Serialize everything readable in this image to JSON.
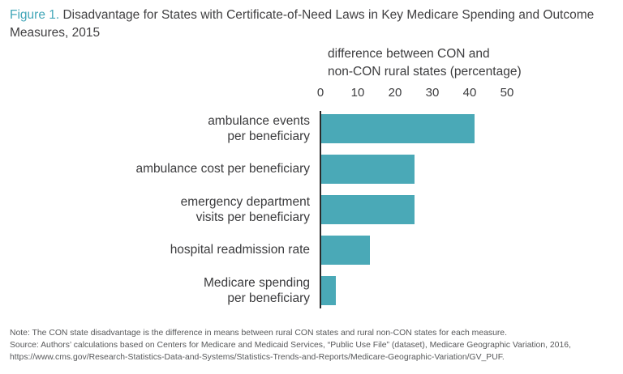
{
  "title": {
    "prefix": "Figure 1.",
    "text": "Disadvantage for States with Certificate-of-Need Laws in Key Medicare Spending and Outcome Measures, 2015"
  },
  "chart_data": {
    "type": "bar",
    "orientation": "horizontal",
    "axis_title_lines": [
      "difference between CON and",
      "non-CON rural states (percentage)"
    ],
    "categories": [
      [
        "ambulance events",
        "per beneficiary"
      ],
      [
        "ambulance cost per beneficiary"
      ],
      [
        "emergency department",
        "visits per beneficiary"
      ],
      [
        "hospital readmission rate"
      ],
      [
        "Medicare spending",
        "per beneficiary"
      ]
    ],
    "values": [
      41,
      25,
      25,
      13,
      4
    ],
    "xlim": [
      0,
      50
    ],
    "ticks": [
      0,
      10,
      20,
      30,
      40,
      50
    ],
    "bar_color": "#4aa9b7",
    "grid": false,
    "legend": "none"
  },
  "notes": {
    "note": "Note: The CON state disadvantage is the difference in means between rural CON states and rural non-CON states for each measure.",
    "source": "Source: Authors’ calculations based on Centers for Medicare and Medicaid Services, “Public Use File” (dataset), Medicare Geographic Variation, 2016, https://www.cms.gov/Research-Statistics-Data-and-Systems/Statistics-Trends-and-Reports/Medicare-Geographic-Variation/GV_PUF."
  }
}
